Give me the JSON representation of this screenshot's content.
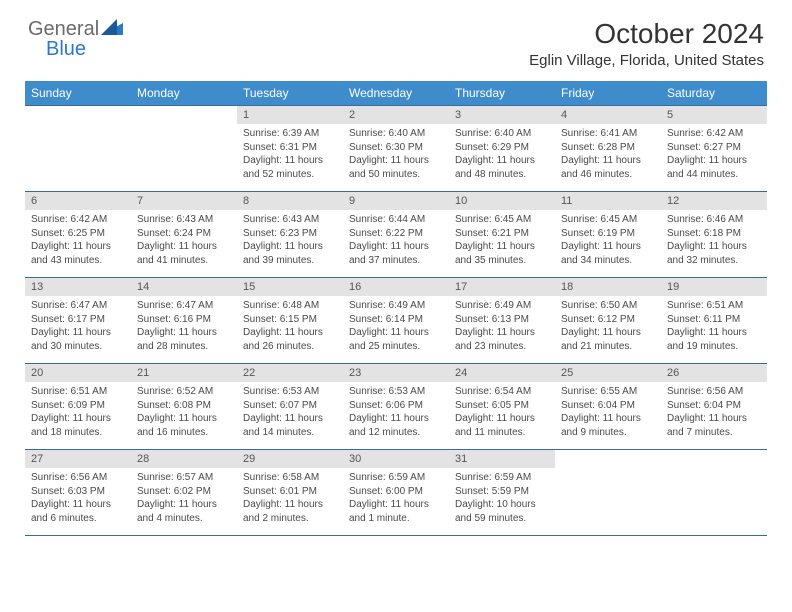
{
  "logo": {
    "part1": "General",
    "part2": "Blue"
  },
  "title": "October 2024",
  "location": "Eglin Village, Florida, United States",
  "colors": {
    "header_bg": "#3f8ccc",
    "header_text": "#ffffff",
    "daynum_bg": "#e3e3e3",
    "row_border": "#3a6a9c",
    "logo_gray": "#6a6a6a",
    "logo_blue": "#2b7ac7"
  },
  "weekdays": [
    "Sunday",
    "Monday",
    "Tuesday",
    "Wednesday",
    "Thursday",
    "Friday",
    "Saturday"
  ],
  "weeks": [
    [
      {
        "n": "",
        "sr": "",
        "ss": "",
        "dl": ""
      },
      {
        "n": "",
        "sr": "",
        "ss": "",
        "dl": ""
      },
      {
        "n": "1",
        "sr": "Sunrise: 6:39 AM",
        "ss": "Sunset: 6:31 PM",
        "dl": "Daylight: 11 hours and 52 minutes."
      },
      {
        "n": "2",
        "sr": "Sunrise: 6:40 AM",
        "ss": "Sunset: 6:30 PM",
        "dl": "Daylight: 11 hours and 50 minutes."
      },
      {
        "n": "3",
        "sr": "Sunrise: 6:40 AM",
        "ss": "Sunset: 6:29 PM",
        "dl": "Daylight: 11 hours and 48 minutes."
      },
      {
        "n": "4",
        "sr": "Sunrise: 6:41 AM",
        "ss": "Sunset: 6:28 PM",
        "dl": "Daylight: 11 hours and 46 minutes."
      },
      {
        "n": "5",
        "sr": "Sunrise: 6:42 AM",
        "ss": "Sunset: 6:27 PM",
        "dl": "Daylight: 11 hours and 44 minutes."
      }
    ],
    [
      {
        "n": "6",
        "sr": "Sunrise: 6:42 AM",
        "ss": "Sunset: 6:25 PM",
        "dl": "Daylight: 11 hours and 43 minutes."
      },
      {
        "n": "7",
        "sr": "Sunrise: 6:43 AM",
        "ss": "Sunset: 6:24 PM",
        "dl": "Daylight: 11 hours and 41 minutes."
      },
      {
        "n": "8",
        "sr": "Sunrise: 6:43 AM",
        "ss": "Sunset: 6:23 PM",
        "dl": "Daylight: 11 hours and 39 minutes."
      },
      {
        "n": "9",
        "sr": "Sunrise: 6:44 AM",
        "ss": "Sunset: 6:22 PM",
        "dl": "Daylight: 11 hours and 37 minutes."
      },
      {
        "n": "10",
        "sr": "Sunrise: 6:45 AM",
        "ss": "Sunset: 6:21 PM",
        "dl": "Daylight: 11 hours and 35 minutes."
      },
      {
        "n": "11",
        "sr": "Sunrise: 6:45 AM",
        "ss": "Sunset: 6:19 PM",
        "dl": "Daylight: 11 hours and 34 minutes."
      },
      {
        "n": "12",
        "sr": "Sunrise: 6:46 AM",
        "ss": "Sunset: 6:18 PM",
        "dl": "Daylight: 11 hours and 32 minutes."
      }
    ],
    [
      {
        "n": "13",
        "sr": "Sunrise: 6:47 AM",
        "ss": "Sunset: 6:17 PM",
        "dl": "Daylight: 11 hours and 30 minutes."
      },
      {
        "n": "14",
        "sr": "Sunrise: 6:47 AM",
        "ss": "Sunset: 6:16 PM",
        "dl": "Daylight: 11 hours and 28 minutes."
      },
      {
        "n": "15",
        "sr": "Sunrise: 6:48 AM",
        "ss": "Sunset: 6:15 PM",
        "dl": "Daylight: 11 hours and 26 minutes."
      },
      {
        "n": "16",
        "sr": "Sunrise: 6:49 AM",
        "ss": "Sunset: 6:14 PM",
        "dl": "Daylight: 11 hours and 25 minutes."
      },
      {
        "n": "17",
        "sr": "Sunrise: 6:49 AM",
        "ss": "Sunset: 6:13 PM",
        "dl": "Daylight: 11 hours and 23 minutes."
      },
      {
        "n": "18",
        "sr": "Sunrise: 6:50 AM",
        "ss": "Sunset: 6:12 PM",
        "dl": "Daylight: 11 hours and 21 minutes."
      },
      {
        "n": "19",
        "sr": "Sunrise: 6:51 AM",
        "ss": "Sunset: 6:11 PM",
        "dl": "Daylight: 11 hours and 19 minutes."
      }
    ],
    [
      {
        "n": "20",
        "sr": "Sunrise: 6:51 AM",
        "ss": "Sunset: 6:09 PM",
        "dl": "Daylight: 11 hours and 18 minutes."
      },
      {
        "n": "21",
        "sr": "Sunrise: 6:52 AM",
        "ss": "Sunset: 6:08 PM",
        "dl": "Daylight: 11 hours and 16 minutes."
      },
      {
        "n": "22",
        "sr": "Sunrise: 6:53 AM",
        "ss": "Sunset: 6:07 PM",
        "dl": "Daylight: 11 hours and 14 minutes."
      },
      {
        "n": "23",
        "sr": "Sunrise: 6:53 AM",
        "ss": "Sunset: 6:06 PM",
        "dl": "Daylight: 11 hours and 12 minutes."
      },
      {
        "n": "24",
        "sr": "Sunrise: 6:54 AM",
        "ss": "Sunset: 6:05 PM",
        "dl": "Daylight: 11 hours and 11 minutes."
      },
      {
        "n": "25",
        "sr": "Sunrise: 6:55 AM",
        "ss": "Sunset: 6:04 PM",
        "dl": "Daylight: 11 hours and 9 minutes."
      },
      {
        "n": "26",
        "sr": "Sunrise: 6:56 AM",
        "ss": "Sunset: 6:04 PM",
        "dl": "Daylight: 11 hours and 7 minutes."
      }
    ],
    [
      {
        "n": "27",
        "sr": "Sunrise: 6:56 AM",
        "ss": "Sunset: 6:03 PM",
        "dl": "Daylight: 11 hours and 6 minutes."
      },
      {
        "n": "28",
        "sr": "Sunrise: 6:57 AM",
        "ss": "Sunset: 6:02 PM",
        "dl": "Daylight: 11 hours and 4 minutes."
      },
      {
        "n": "29",
        "sr": "Sunrise: 6:58 AM",
        "ss": "Sunset: 6:01 PM",
        "dl": "Daylight: 11 hours and 2 minutes."
      },
      {
        "n": "30",
        "sr": "Sunrise: 6:59 AM",
        "ss": "Sunset: 6:00 PM",
        "dl": "Daylight: 11 hours and 1 minute."
      },
      {
        "n": "31",
        "sr": "Sunrise: 6:59 AM",
        "ss": "Sunset: 5:59 PM",
        "dl": "Daylight: 10 hours and 59 minutes."
      },
      {
        "n": "",
        "sr": "",
        "ss": "",
        "dl": ""
      },
      {
        "n": "",
        "sr": "",
        "ss": "",
        "dl": ""
      }
    ]
  ]
}
